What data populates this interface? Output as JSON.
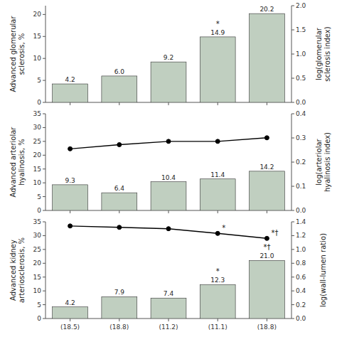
{
  "chart_data": [
    {
      "type": "bar",
      "categories": [
        null,
        null,
        null,
        null,
        null
      ],
      "tick_labels": "y",
      "ylabel": "Advanced glomerular\nsclerosis, %",
      "y2label": "log(glomerular\nsclerosis index)",
      "ylim": [
        0,
        22
      ],
      "yticks": [
        0,
        5,
        10,
        15,
        20
      ],
      "y2lim": [
        0,
        2.0
      ],
      "y2ticks": [
        {
          "value": 0,
          "label": "0.0"
        },
        0.5,
        {
          "value": 1.0,
          "label": "1.0"
        },
        1.5,
        {
          "value": 2.0,
          "label": "2.0"
        }
      ],
      "data_labels": true,
      "series": [
        {
          "type": "bar",
          "color": "#c0cfc0",
          "values": [
            4.2,
            6.0,
            9.2,
            14.9,
            20.2
          ],
          "value_labels": [
            "4.2",
            "6.0",
            "9.2",
            "14.9",
            "20.2"
          ],
          "annotations": [
            null,
            null,
            null,
            "*",
            null
          ]
        }
      ]
    },
    {
      "type": "bar",
      "categories": [
        null,
        null,
        null,
        null,
        null
      ],
      "tick_labels": "y",
      "ylabel": "Advanced arteriolar\nhyalinosis, %",
      "y2label": "log(arteriolar\nhyalinosis index)",
      "ylim": [
        0,
        35
      ],
      "yticks": [
        0,
        5,
        10,
        15,
        20,
        25,
        30,
        35
      ],
      "y2lim": [
        0,
        0.4
      ],
      "y2ticks": [
        {
          "value": 0,
          "label": "0.0"
        },
        0.1,
        0.2,
        0.3,
        0.4
      ],
      "data_labels": true,
      "series": [
        {
          "type": "bar",
          "color": "#c0cfc0",
          "values": [
            9.3,
            6.4,
            10.4,
            11.4,
            14.2
          ],
          "value_labels": [
            "9.3",
            "6.4",
            "10.4",
            "11.4",
            "14.2"
          ]
        },
        {
          "type": "line",
          "color": "#000000",
          "marker": "circle",
          "values": [
            22.3,
            23.8,
            25.0,
            25.0,
            26.3
          ]
        }
      ]
    },
    {
      "type": "bar",
      "categories": [
        "(18.5)",
        "(18.8)",
        "(11.2)",
        "(11.1)",
        "(18.8)"
      ],
      "ylabel": "Advanced kidney\narteriosclerosis, %",
      "y2label": "log(wall-lumen ratio)",
      "ylim": [
        0,
        35
      ],
      "yticks": [
        0,
        5,
        10,
        15,
        20,
        25,
        30,
        35
      ],
      "y2lim": [
        0,
        1.4
      ],
      "y2ticks": [
        {
          "value": 0,
          "label": "0.0"
        },
        0.2,
        0.4,
        0.6,
        0.8,
        {
          "value": 1.0,
          "label": "1.0"
        },
        1.2,
        1.4
      ],
      "data_labels": true,
      "series": [
        {
          "type": "bar",
          "color": "#c0cfc0",
          "values": [
            4.2,
            7.9,
            7.4,
            12.3,
            21.0
          ],
          "value_labels": [
            "4.2",
            "7.9",
            "7.4",
            "12.3",
            "21.0"
          ],
          "annotations": [
            null,
            null,
            null,
            "*",
            "*†"
          ]
        },
        {
          "type": "line",
          "color": "#000000",
          "marker": "circle",
          "values": [
            33.5,
            33.0,
            32.5,
            30.8,
            29.0
          ],
          "annotations": [
            null,
            null,
            null,
            "*",
            "*†"
          ]
        }
      ]
    }
  ]
}
